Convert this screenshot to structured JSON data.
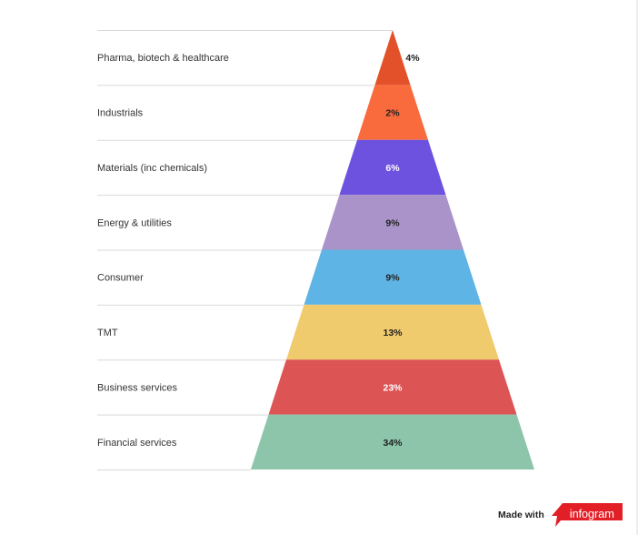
{
  "chart_data": {
    "type": "pyramid",
    "categories": [
      "Pharma, biotech & healthcare",
      "Industrials",
      "Materials (inc chemicals)",
      "Energy & utilities",
      "Consumer",
      "TMT",
      "Business services",
      "Financial services"
    ],
    "values": [
      4,
      2,
      6,
      9,
      9,
      13,
      23,
      34
    ],
    "value_labels": [
      "4%",
      "2%",
      "6%",
      "9%",
      "9%",
      "13%",
      "23%",
      "34%"
    ],
    "colors": [
      "#e3512a",
      "#f96a3c",
      "#6c52df",
      "#a993c8",
      "#5eb4e5",
      "#f0cb6d",
      "#dc5454",
      "#8cc5aa"
    ],
    "label_colors": [
      "#222222",
      "#222222",
      "#ffffff",
      "#222222",
      "#222222",
      "#222222",
      "#ffffff",
      "#222222"
    ],
    "row_separator_color": "#d9d9d9"
  },
  "branding": {
    "made_with": "Made with",
    "logo_text": "infogram",
    "logo_color": "#e21e26"
  }
}
